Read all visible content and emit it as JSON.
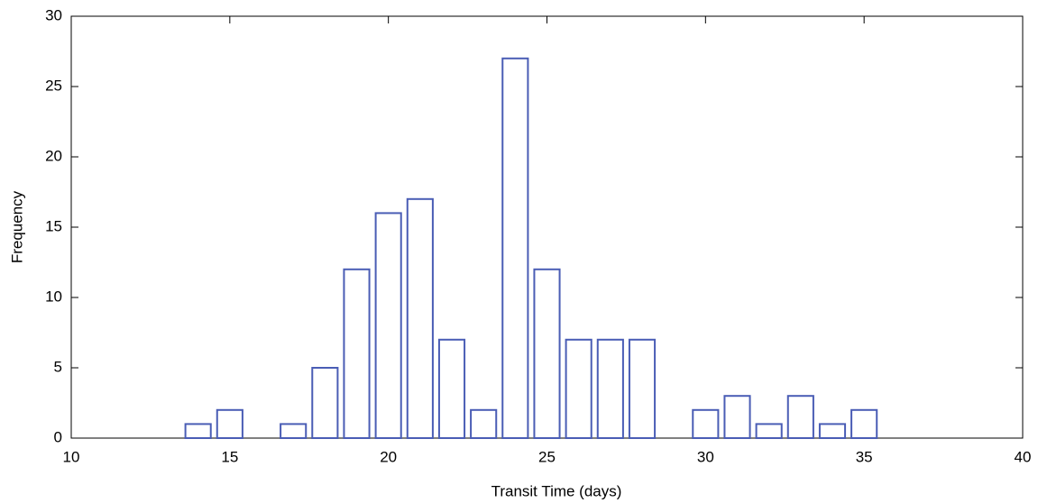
{
  "chart_data": {
    "type": "bar",
    "x": [
      14,
      15,
      17,
      18,
      19,
      20,
      21,
      22,
      23,
      24,
      25,
      26,
      27,
      28,
      30,
      31,
      32,
      33,
      34,
      35
    ],
    "values": [
      1,
      2,
      1,
      5,
      12,
      16,
      17,
      7,
      2,
      27,
      12,
      7,
      7,
      7,
      2,
      3,
      1,
      3,
      1,
      2
    ],
    "color": "#4a5db5",
    "xlabel": "Transit Time (days)",
    "ylabel": "Frequency",
    "xlim": [
      10,
      40
    ],
    "xticks": [
      10,
      15,
      20,
      25,
      30,
      35,
      40
    ],
    "ylim": [
      0,
      30
    ],
    "yticks": [
      0,
      5,
      10,
      15,
      20,
      25,
      30
    ]
  }
}
